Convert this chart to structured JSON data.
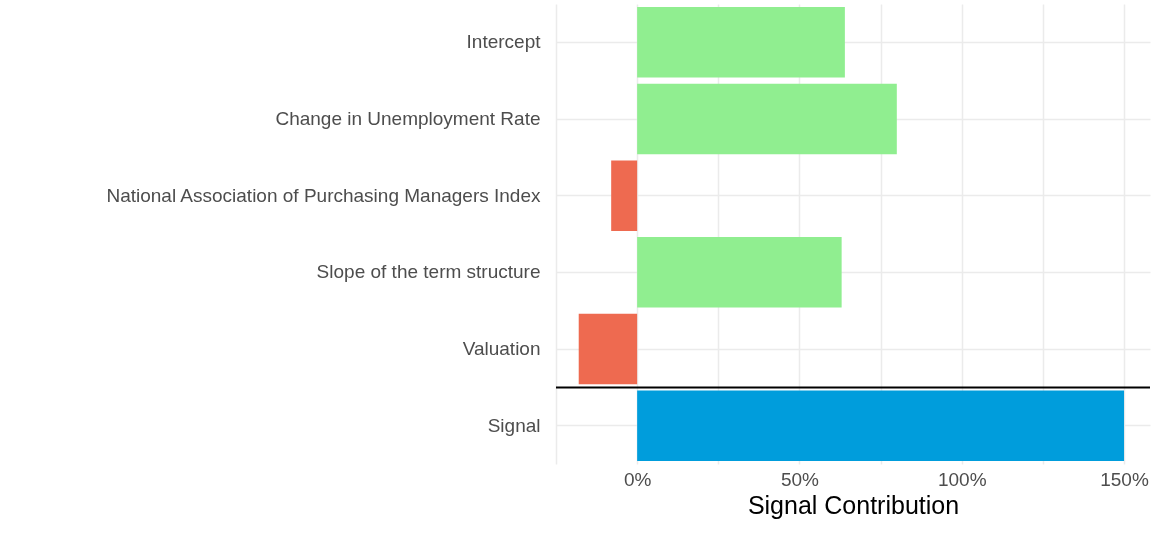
{
  "chart_data": {
    "type": "bar",
    "orientation": "horizontal",
    "xlabel": "Signal Contribution",
    "categories": [
      "Intercept",
      "Change in Unemployment Rate",
      "National Association of Purchasing Managers Index",
      "Slope of the term structure",
      "Valuation",
      "Signal"
    ],
    "values": [
      64,
      80,
      -8,
      63,
      -18,
      150
    ],
    "colors": [
      "#90ee90",
      "#90ee90",
      "#ee6a50",
      "#90ee90",
      "#ee6a50",
      "#009ddc"
    ],
    "xlim": [
      -25,
      158
    ],
    "xticks": [
      {
        "value": -25,
        "label": null
      },
      {
        "value": 0,
        "label": "0%"
      },
      {
        "value": 25,
        "label": null
      },
      {
        "value": 50,
        "label": "50%"
      },
      {
        "value": 75,
        "label": null
      },
      {
        "value": 100,
        "label": "100%"
      },
      {
        "value": 125,
        "label": null
      },
      {
        "value": 150,
        "label": "150%"
      }
    ],
    "grid": true,
    "ref_lines": [
      {
        "axis": "y",
        "value": "Signal",
        "color": "#000000"
      }
    ]
  }
}
